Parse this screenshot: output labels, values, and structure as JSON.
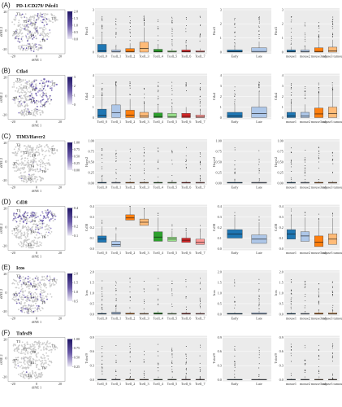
{
  "colors": {
    "cluster_box": [
      "#1f77b4",
      "#aec7e8",
      "#ff7f0e",
      "#ffbb78",
      "#2ca02c",
      "#98df8a",
      "#d62728",
      "#ff9896"
    ],
    "early_late": [
      "#1f77b4",
      "#aec7e8"
    ],
    "mouse": [
      "#1f77b4",
      "#aec7e8",
      "#ff7f0e",
      "#ffbb78"
    ],
    "tsne_cells": "#c8c8c8",
    "tsne_high": "#3c2a8a",
    "gradient": [
      "#ece9f5",
      "#6a5aa8",
      "#1e1464"
    ],
    "plot_bg": "#ebebeb",
    "grid": "#ffffff"
  },
  "common": {
    "tsne_x_label": "tSNE 1",
    "tsne_y_label": "tSNE 2",
    "tsne_ticks": [
      "-20",
      "-10",
      "0",
      "10",
      "20"
    ],
    "clusters": [
      "Tcell_0",
      "Tcell_1",
      "Tcell_2",
      "Tcell_3",
      "Tcell_4",
      "Tcell_5",
      "Tcell_6",
      "Tcell_7"
    ],
    "stages": [
      "Early",
      "Late"
    ],
    "mice": [
      "mouse1",
      "mouse2",
      "mouse3 adj",
      "mouse3 tumour"
    ],
    "cluster_labels": [
      "T0",
      "T1",
      "T2",
      "T3",
      "T4",
      "T5",
      "T6",
      "T7"
    ]
  },
  "panels": [
    {
      "letter": "(A)",
      "gene": "PD-1/CD279/ Pdcd1",
      "ylabel": "Pdcd1",
      "cmax": "2.0",
      "cbar_ticks": [
        "0.0",
        "0.5",
        "1.0",
        "1.5",
        "2.0"
      ],
      "ylim": [
        0,
        3
      ],
      "yticks": [
        "0",
        "1",
        "2",
        "3"
      ],
      "tsne_high": "low",
      "cluster_medians": [
        0.1,
        0.02,
        0.05,
        0.25,
        0.05,
        0.02,
        0.03,
        0.02
      ],
      "cluster_q3": [
        0.55,
        0.15,
        0.25,
        0.7,
        0.2,
        0.1,
        0.15,
        0.1
      ],
      "stage_medians": [
        0.03,
        0.05
      ],
      "stage_q3": [
        0.15,
        0.3
      ],
      "mouse_medians": [
        0.03,
        0.03,
        0.05,
        0.08
      ],
      "mouse_q3": [
        0.15,
        0.15,
        0.3,
        0.35
      ]
    },
    {
      "letter": "(B)",
      "gene": "Ctla4",
      "ylabel": "Ctla4",
      "cmax": "3",
      "cbar_ticks": [
        "0",
        "1",
        "2",
        "3"
      ],
      "ylim": [
        0,
        4
      ],
      "yticks": [
        "0",
        "1",
        "2",
        "3",
        "4"
      ],
      "tsne_high": "right",
      "cluster_medians": [
        0.2,
        0.45,
        0.25,
        0.15,
        0.1,
        0.1,
        0.12,
        0.05
      ],
      "cluster_q3": [
        0.8,
        1.2,
        0.7,
        0.5,
        0.45,
        0.4,
        0.4,
        0.25
      ],
      "stage_medians": [
        0.15,
        0.4
      ],
      "stage_q3": [
        0.5,
        1.0
      ],
      "mouse_medians": [
        0.15,
        0.15,
        0.35,
        0.4
      ],
      "mouse_q3": [
        0.5,
        0.5,
        0.9,
        1.0
      ]
    },
    {
      "letter": "(C)",
      "gene": "TIM3/Havcr2",
      "ylabel": "Havcr2",
      "cmax": "1.00",
      "cbar_ticks": [
        "0.00",
        "0.25",
        "0.50",
        "0.75",
        "1.00"
      ],
      "ylim": [
        0,
        1
      ],
      "yticks": [
        "0.00",
        "0.25",
        "0.50",
        "0.75",
        "1.00"
      ],
      "tsne_high": "none",
      "cluster_medians": [
        0.01,
        0.01,
        0.01,
        0.01,
        0.01,
        0.01,
        0.01,
        0.01
      ],
      "cluster_q3": [
        0.02,
        0.02,
        0.02,
        0.02,
        0.02,
        0.02,
        0.02,
        0.02
      ],
      "stage_medians": [
        0.01,
        0.01
      ],
      "stage_q3": [
        0.02,
        0.02
      ],
      "mouse_medians": [
        0.01,
        0.01,
        0.01,
        0.01
      ],
      "mouse_q3": [
        0.02,
        0.02,
        0.02,
        0.02
      ]
    },
    {
      "letter": "(D)",
      "gene": "Cd38",
      "ylabel": "Cd38",
      "cmax": "0.4",
      "cbar_ticks": [
        "0.1",
        "0.2",
        "0.3",
        "0.4"
      ],
      "ylim": [
        0,
        0.4
      ],
      "yticks": [
        "0.0",
        "0.1",
        "0.2",
        "0.3",
        "0.4"
      ],
      "tsne_high": "top",
      "cluster_medians": [
        0.09,
        0.04,
        0.29,
        0.25,
        0.11,
        0.09,
        0.08,
        0.06
      ],
      "cluster_q3": [
        0.12,
        0.07,
        0.32,
        0.28,
        0.16,
        0.11,
        0.1,
        0.09
      ],
      "cluster_q1": [
        0.06,
        0.02,
        0.27,
        0.22,
        0.07,
        0.07,
        0.06,
        0.04
      ],
      "stage_medians": [
        0.14,
        0.09
      ],
      "stage_q3": [
        0.18,
        0.13
      ],
      "stage_q1": [
        0.1,
        0.05
      ],
      "mouse_medians": [
        0.14,
        0.12,
        0.06,
        0.09
      ],
      "mouse_q3": [
        0.18,
        0.16,
        0.12,
        0.14
      ],
      "mouse_q1": [
        0.09,
        0.07,
        0.02,
        0.04
      ]
    },
    {
      "letter": "(E)",
      "gene": "Icos",
      "ylabel": "Icos",
      "cmax": "2.0",
      "cbar_ticks": [
        "0.5",
        "1.0",
        "1.5",
        "2.0"
      ],
      "ylim": [
        0,
        2.5
      ],
      "yticks": [
        "0.0",
        "0.5",
        "1.0",
        "1.5",
        "2.0"
      ],
      "tsne_high": "low",
      "cluster_medians": [
        0.02,
        0.05,
        0.02,
        0.02,
        0.03,
        0.02,
        0.03,
        0.02
      ],
      "cluster_q3": [
        0.05,
        0.12,
        0.06,
        0.05,
        0.08,
        0.05,
        0.06,
        0.05
      ],
      "stage_medians": [
        0.02,
        0.03
      ],
      "stage_q3": [
        0.05,
        0.08
      ],
      "mouse_medians": [
        0.02,
        0.02,
        0.03,
        0.03
      ],
      "mouse_q3": [
        0.05,
        0.05,
        0.07,
        0.08
      ]
    },
    {
      "letter": "(F)",
      "gene": "Tnfrsf9",
      "ylabel": "Tnfrsf9",
      "cmax": "1.00",
      "cbar_ticks": [
        "0.25",
        "0.50",
        "0.75",
        "1.00"
      ],
      "ylim": [
        0,
        1
      ],
      "yticks": [
        "0.0",
        "0.3",
        "0.6",
        "0.9"
      ],
      "tsne_high": "none",
      "cluster_medians": [
        0.005,
        0.005,
        0.005,
        0.005,
        0.005,
        0.005,
        0.005,
        0.005
      ],
      "cluster_q3": [
        0.01,
        0.01,
        0.01,
        0.01,
        0.01,
        0.01,
        0.01,
        0.01
      ],
      "stage_medians": [
        0.005,
        0.005
      ],
      "stage_q3": [
        0.01,
        0.01
      ],
      "mouse_medians": [
        0.005,
        0.005,
        0.005,
        0.005
      ],
      "mouse_q3": [
        0.01,
        0.01,
        0.01,
        0.01
      ]
    }
  ]
}
